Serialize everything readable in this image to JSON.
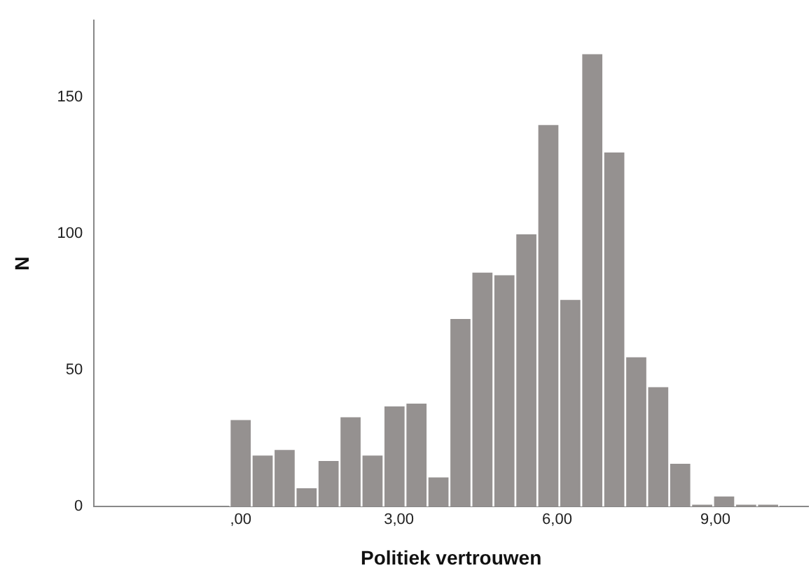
{
  "chart_data": {
    "type": "histogram",
    "xlabel": "Politiek vertrouwen",
    "ylabel": "N",
    "color": "#959190",
    "bins": [
      -0.208,
      0.208,
      0.625,
      1.042,
      1.458,
      1.875,
      2.292,
      2.708,
      3.125,
      3.542,
      3.958,
      4.375,
      4.792,
      5.208,
      5.625,
      6.042,
      6.458,
      6.875,
      7.292,
      7.708,
      8.125,
      8.542,
      8.958,
      9.375,
      9.792,
      10.208
    ],
    "values": [
      32,
      19,
      21,
      7,
      17,
      33,
      19,
      37,
      38,
      11,
      69,
      86,
      85,
      100,
      140,
      76,
      166,
      130,
      55,
      44,
      16,
      1,
      4,
      1,
      1
    ],
    "xlim": [
      -2.78,
      10.76
    ],
    "xticks": [
      {
        "value": 0,
        "label": ",00"
      },
      {
        "value": 3,
        "label": "3,00"
      },
      {
        "value": 6,
        "label": "6,00"
      },
      {
        "value": 9,
        "label": "9,00"
      }
    ],
    "ylim": [
      0,
      178
    ],
    "yticks": [
      0,
      50,
      100,
      150
    ],
    "grid": false,
    "legend": false
  }
}
